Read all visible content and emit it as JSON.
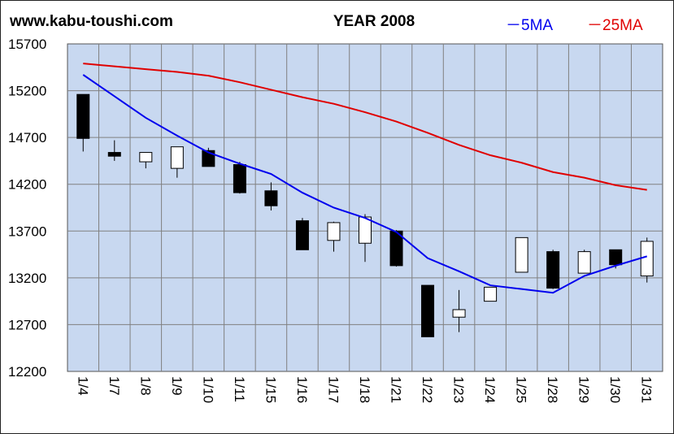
{
  "header": {
    "site": "www.kabu-toushi.com",
    "title": "YEAR 2008"
  },
  "chart_data": {
    "type": "candlestick",
    "title": "YEAR 2008",
    "ylim": [
      12200,
      15700
    ],
    "y_ticks": [
      "15700",
      "15200",
      "14700",
      "14200",
      "13700",
      "13200",
      "12700",
      "12200"
    ],
    "categories": [
      "1/4",
      "1/7",
      "1/8",
      "1/9",
      "1/10",
      "1/11",
      "1/15",
      "1/16",
      "1/17",
      "1/18",
      "1/21",
      "1/22",
      "1/23",
      "1/24",
      "1/25",
      "1/28",
      "1/29",
      "1/30",
      "1/31"
    ],
    "ohlc": [
      {
        "open": 15160,
        "high": 15160,
        "low": 14550,
        "close": 14690
      },
      {
        "open": 14540,
        "high": 14670,
        "low": 14450,
        "close": 14500
      },
      {
        "open": 14440,
        "high": 14540,
        "low": 14370,
        "close": 14540
      },
      {
        "open": 14370,
        "high": 14600,
        "low": 14270,
        "close": 14600
      },
      {
        "open": 14560,
        "high": 14590,
        "low": 14390,
        "close": 14390
      },
      {
        "open": 14410,
        "high": 14440,
        "low": 14100,
        "close": 14110
      },
      {
        "open": 14130,
        "high": 14220,
        "low": 13920,
        "close": 13970
      },
      {
        "open": 13810,
        "high": 13840,
        "low": 13500,
        "close": 13500
      },
      {
        "open": 13600,
        "high": 13800,
        "low": 13480,
        "close": 13790
      },
      {
        "open": 13570,
        "high": 13880,
        "low": 13370,
        "close": 13850
      },
      {
        "open": 13700,
        "high": 13710,
        "low": 13320,
        "close": 13330
      },
      {
        "open": 13120,
        "high": 13120,
        "low": 12570,
        "close": 12570
      },
      {
        "open": 12780,
        "high": 13070,
        "low": 12620,
        "close": 12860
      },
      {
        "open": 12950,
        "high": 13100,
        "low": 12950,
        "close": 13100
      },
      {
        "open": 13260,
        "high": 13630,
        "low": 13260,
        "close": 13630
      },
      {
        "open": 13480,
        "high": 13500,
        "low": 13080,
        "close": 13090
      },
      {
        "open": 13250,
        "high": 13500,
        "low": 13250,
        "close": 13480
      },
      {
        "open": 13500,
        "high": 13500,
        "low": 13300,
        "close": 13340
      },
      {
        "open": 13220,
        "high": 13630,
        "low": 13150,
        "close": 13590
      }
    ],
    "series": [
      {
        "name": "5MA",
        "color": "#0000ee",
        "values": [
          15370,
          15140,
          14910,
          14720,
          14540,
          14420,
          14310,
          14110,
          13950,
          13840,
          13690,
          13410,
          13270,
          13120,
          13080,
          13040,
          13220,
          13330,
          13430
        ]
      },
      {
        "name": "25MA",
        "color": "#e00000",
        "values": [
          15490,
          15460,
          15430,
          15400,
          15360,
          15290,
          15210,
          15130,
          15060,
          14970,
          14870,
          14750,
          14620,
          14510,
          14430,
          14330,
          14270,
          14190,
          14140
        ]
      }
    ],
    "legend": [
      "－5MA",
      "－25MA"
    ],
    "legend_position": "top-right",
    "grid": true,
    "colors": {
      "plot_bg": "#c8d8f0",
      "grid": "#808080",
      "up": "#ffffff",
      "down": "#000000"
    }
  }
}
